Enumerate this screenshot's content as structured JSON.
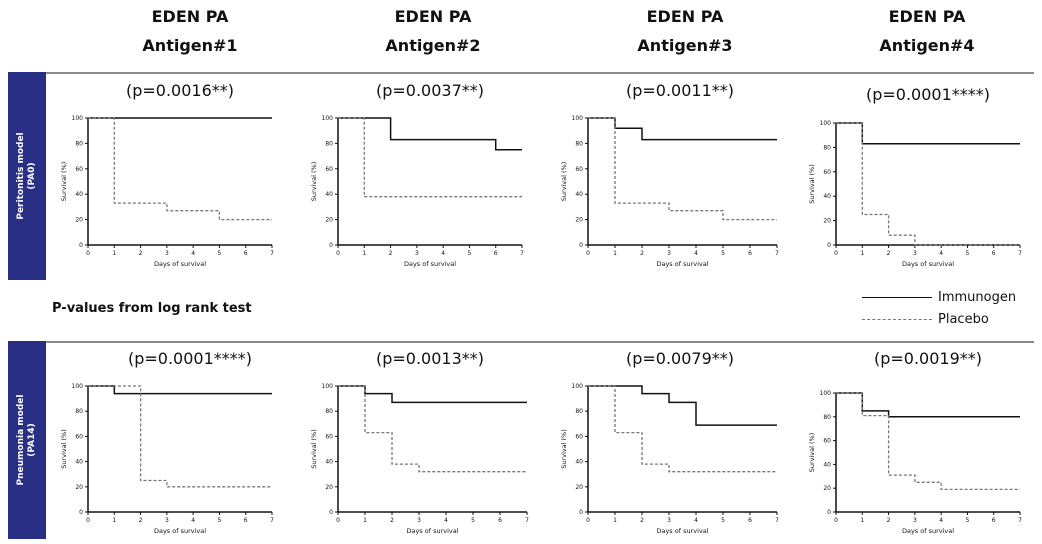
{
  "columns": [
    {
      "line1": "EDEN PA",
      "line2": "Antigen#1"
    },
    {
      "line1": "EDEN PA",
      "line2": "Antigen#2"
    },
    {
      "line1": "EDEN PA",
      "line2": "Antigen#3"
    },
    {
      "line1": "EDEN PA",
      "line2": "Antigen#4"
    }
  ],
  "rows": [
    {
      "label_line1": "Peritonitis model",
      "label_line2": "(PA0)"
    },
    {
      "label_line1": "Pneumonia model",
      "label_line2": "(PA14)"
    }
  ],
  "middle_note": "P-values from log rank test",
  "legend": {
    "immunogen": "Immunogen",
    "placebo": "Placebo"
  },
  "colors": {
    "band": "#2a2f86",
    "immunogen": "#111111",
    "placebo": "#777777"
  },
  "chart_data": [
    {
      "type": "line",
      "pvalue": "(p=0.0016**)",
      "xlabel": "Days of survival",
      "ylabel": "Survival (%)",
      "xlim": [
        0,
        7
      ],
      "ylim": [
        0,
        100
      ],
      "xticks": [
        0,
        1,
        2,
        3,
        4,
        5,
        6,
        7
      ],
      "yticks": [
        0,
        20,
        40,
        60,
        80,
        100
      ],
      "series": [
        {
          "name": "Immunogen",
          "style": "solid",
          "x": [
            0,
            7
          ],
          "y": [
            100,
            100
          ]
        },
        {
          "name": "Placebo",
          "style": "dashed",
          "x": [
            0,
            1,
            1,
            3,
            3,
            5,
            5,
            7
          ],
          "y": [
            100,
            100,
            33,
            33,
            27,
            27,
            20,
            20
          ]
        }
      ]
    },
    {
      "type": "line",
      "pvalue": "(p=0.0037**)",
      "xlabel": "Days of survival",
      "ylabel": "Survival (%)",
      "xlim": [
        0,
        7
      ],
      "ylim": [
        0,
        100
      ],
      "xticks": [
        0,
        1,
        2,
        3,
        4,
        5,
        6,
        7
      ],
      "yticks": [
        0,
        20,
        40,
        60,
        80,
        100
      ],
      "series": [
        {
          "name": "Immunogen",
          "style": "solid",
          "x": [
            0,
            2,
            2,
            6,
            6,
            7
          ],
          "y": [
            100,
            100,
            83,
            83,
            75,
            75
          ]
        },
        {
          "name": "Placebo",
          "style": "dashed",
          "x": [
            0,
            1,
            1,
            7
          ],
          "y": [
            100,
            100,
            38,
            38
          ]
        }
      ]
    },
    {
      "type": "line",
      "pvalue": "(p=0.0011**)",
      "xlabel": "Days of survival",
      "ylabel": "Survival (%)",
      "xlim": [
        0,
        7
      ],
      "ylim": [
        0,
        100
      ],
      "xticks": [
        0,
        1,
        2,
        3,
        4,
        5,
        6,
        7
      ],
      "yticks": [
        0,
        20,
        40,
        60,
        80,
        100
      ],
      "series": [
        {
          "name": "Immunogen",
          "style": "solid",
          "x": [
            0,
            1,
            1,
            2,
            2,
            7
          ],
          "y": [
            100,
            100,
            92,
            92,
            83,
            83
          ]
        },
        {
          "name": "Placebo",
          "style": "dashed",
          "x": [
            0,
            1,
            1,
            3,
            3,
            5,
            5,
            7
          ],
          "y": [
            100,
            100,
            33,
            33,
            27,
            27,
            20,
            20
          ]
        }
      ]
    },
    {
      "type": "line",
      "pvalue": "(p=0.0001****)",
      "xlabel": "Days of survival",
      "ylabel": "Survival (%)",
      "xlim": [
        0,
        7
      ],
      "ylim": [
        0,
        100
      ],
      "xticks": [
        0,
        1,
        2,
        3,
        4,
        5,
        6,
        7
      ],
      "yticks": [
        0,
        20,
        40,
        60,
        80,
        100
      ],
      "series": [
        {
          "name": "Immunogen",
          "style": "solid",
          "x": [
            0,
            1,
            1,
            7
          ],
          "y": [
            100,
            100,
            83,
            83
          ]
        },
        {
          "name": "Placebo",
          "style": "dashed",
          "x": [
            0,
            1,
            1,
            2,
            2,
            3,
            3,
            7
          ],
          "y": [
            100,
            100,
            25,
            25,
            8,
            8,
            0,
            0
          ]
        }
      ]
    },
    {
      "type": "line",
      "pvalue": "(p=0.0001****)",
      "xlabel": "Days of survival",
      "ylabel": "Survival (%)",
      "xlim": [
        0,
        7
      ],
      "ylim": [
        0,
        100
      ],
      "xticks": [
        0,
        1,
        2,
        3,
        4,
        5,
        6,
        7
      ],
      "yticks": [
        0,
        20,
        40,
        60,
        80,
        100
      ],
      "series": [
        {
          "name": "Immunogen",
          "style": "solid",
          "x": [
            0,
            1,
            1,
            7
          ],
          "y": [
            100,
            100,
            94,
            94
          ]
        },
        {
          "name": "Placebo",
          "style": "dashed",
          "x": [
            0,
            2,
            2,
            3,
            3,
            7
          ],
          "y": [
            100,
            100,
            25,
            25,
            20,
            20
          ]
        }
      ]
    },
    {
      "type": "line",
      "pvalue": "(p=0.0013**)",
      "xlabel": "Days of survival",
      "ylabel": "Survival (%)",
      "xlim": [
        0,
        7
      ],
      "ylim": [
        0,
        100
      ],
      "xticks": [
        0,
        1,
        2,
        3,
        4,
        5,
        6,
        7
      ],
      "yticks": [
        0,
        20,
        40,
        60,
        80,
        100
      ],
      "series": [
        {
          "name": "Immunogen",
          "style": "solid",
          "x": [
            0,
            1,
            1,
            2,
            2,
            7
          ],
          "y": [
            100,
            100,
            94,
            94,
            87,
            87
          ]
        },
        {
          "name": "Placebo",
          "style": "dashed",
          "x": [
            0,
            1,
            1,
            2,
            2,
            3,
            3,
            7
          ],
          "y": [
            100,
            100,
            63,
            63,
            38,
            38,
            32,
            32
          ]
        }
      ]
    },
    {
      "type": "line",
      "pvalue": "(p=0.0079**)",
      "xlabel": "Days of survival",
      "ylabel": "Survival (%)",
      "xlim": [
        0,
        7
      ],
      "ylim": [
        0,
        100
      ],
      "xticks": [
        0,
        1,
        2,
        3,
        4,
        5,
        6,
        7
      ],
      "yticks": [
        0,
        20,
        40,
        60,
        80,
        100
      ],
      "series": [
        {
          "name": "Immunogen",
          "style": "solid",
          "x": [
            0,
            2,
            2,
            3,
            3,
            4,
            4,
            7
          ],
          "y": [
            100,
            100,
            94,
            94,
            87,
            87,
            69,
            69
          ]
        },
        {
          "name": "Placebo",
          "style": "dashed",
          "x": [
            0,
            1,
            1,
            2,
            2,
            3,
            3,
            7
          ],
          "y": [
            100,
            100,
            63,
            63,
            38,
            38,
            32,
            32
          ]
        }
      ]
    },
    {
      "type": "line",
      "pvalue": "(p=0.0019**)",
      "xlabel": "Days of survival",
      "ylabel": "Survival (%)",
      "xlim": [
        0,
        7
      ],
      "ylim": [
        0,
        100
      ],
      "xticks": [
        0,
        1,
        2,
        3,
        4,
        5,
        6,
        7
      ],
      "yticks": [
        0,
        20,
        40,
        60,
        80,
        100
      ],
      "series": [
        {
          "name": "Immunogen",
          "style": "solid",
          "x": [
            0,
            1,
            1,
            2,
            2,
            7
          ],
          "y": [
            100,
            100,
            85,
            85,
            80,
            80
          ]
        },
        {
          "name": "Placebo",
          "style": "dashed",
          "x": [
            0,
            1,
            1,
            2,
            2,
            3,
            3,
            4,
            4,
            7
          ],
          "y": [
            100,
            100,
            81,
            81,
            31,
            31,
            25,
            25,
            19,
            19
          ]
        }
      ]
    }
  ]
}
